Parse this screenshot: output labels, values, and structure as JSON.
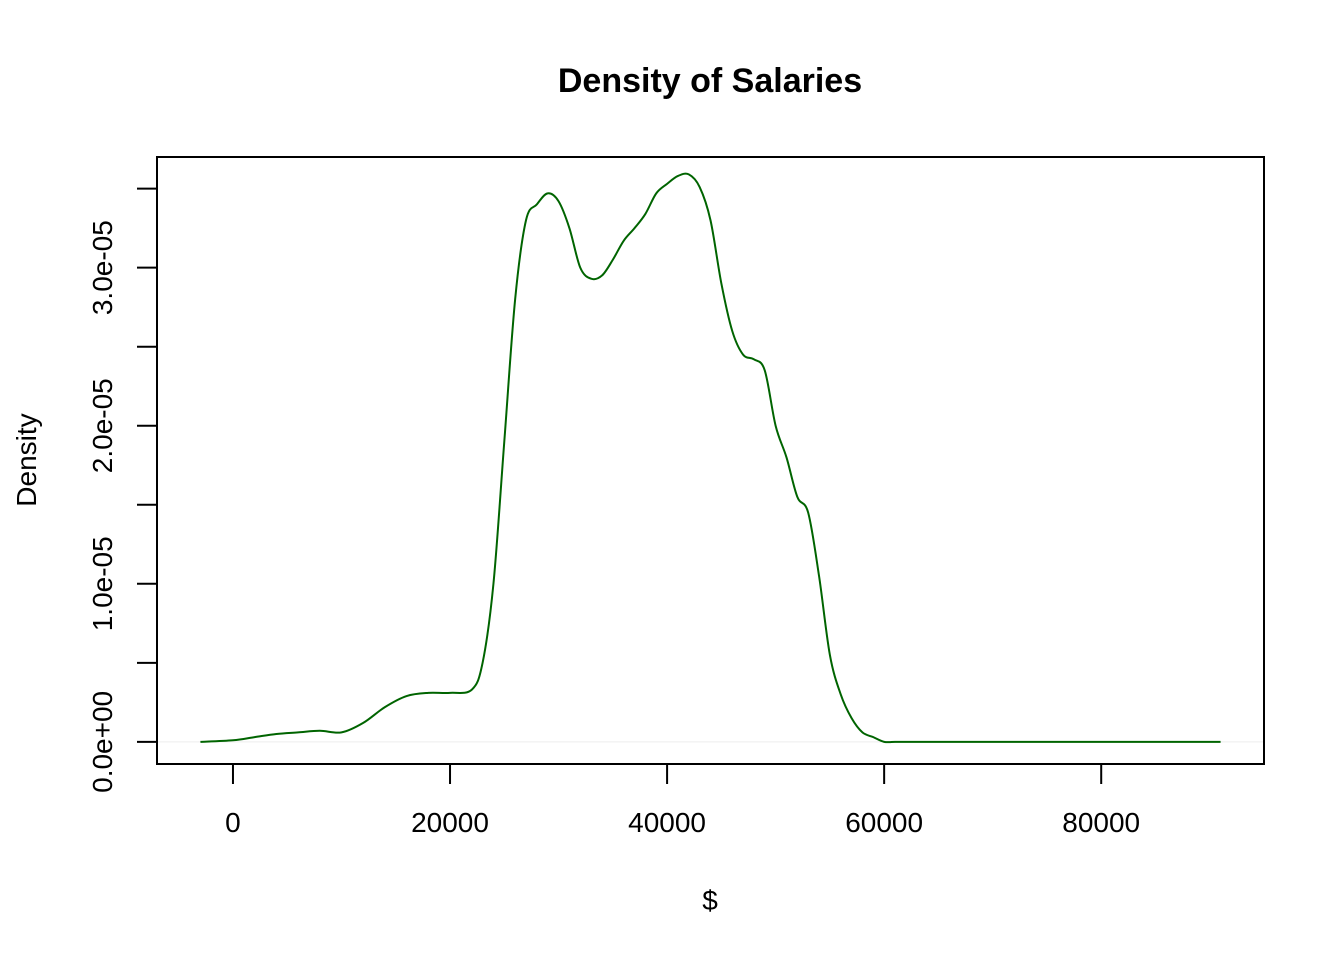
{
  "chart_data": {
    "type": "line",
    "title": "Density of Salaries",
    "xlabel": "$",
    "ylabel": "Density",
    "xlim": [
      -7000,
      95000
    ],
    "ylim": [
      -1.4e-06,
      3.7e-05
    ],
    "x_ticks": [
      0,
      20000,
      40000,
      60000,
      80000
    ],
    "x_tick_labels": [
      "0",
      "20000",
      "40000",
      "60000",
      "80000"
    ],
    "y_ticks": [
      0,
      5e-06,
      1e-05,
      1.5e-05,
      2e-05,
      2.5e-05,
      3e-05,
      3.5e-05
    ],
    "y_tick_labels": [
      "0.0e+00",
      "",
      "1.0e-05",
      "",
      "2.0e-05",
      "",
      "3.0e-05",
      ""
    ],
    "grid": false,
    "legend": "none",
    "colors": {
      "line": "#006400",
      "baseline": "#eeeeee",
      "axis": "#000000"
    },
    "series": [
      {
        "x": [
          -3000,
          0,
          2000,
          4000,
          6000,
          8000,
          10000,
          12000,
          14000,
          16000,
          18000,
          20000,
          22000,
          23000,
          24000,
          25000,
          26000,
          27000,
          28000,
          29000,
          30000,
          31000,
          32000,
          33000,
          34000,
          35000,
          36000,
          37000,
          38000,
          39000,
          40000,
          41000,
          42000,
          43000,
          44000,
          45000,
          46000,
          47000,
          48000,
          49000,
          50000,
          51000,
          52000,
          53000,
          54000,
          55000,
          56000,
          57000,
          58000,
          59000,
          60000,
          61000,
          62000,
          63000,
          64000,
          66000,
          68000,
          70000,
          75000,
          80000,
          85000,
          91000
        ],
        "values": [
          0.0,
          1e-07,
          3e-07,
          5e-07,
          6e-07,
          7e-07,
          6e-07,
          1.2e-06,
          2.2e-06,
          2.9e-06,
          3.1e-06,
          3.1e-06,
          3.3e-06,
          5e-06,
          1e-05,
          1.9e-05,
          2.8e-05,
          3.3e-05,
          3.4e-05,
          3.47e-05,
          3.42e-05,
          3.25e-05,
          3e-05,
          2.93e-05,
          2.95e-05,
          3.05e-05,
          3.17e-05,
          3.25e-05,
          3.34e-05,
          3.47e-05,
          3.53e-05,
          3.58e-05,
          3.59e-05,
          3.51e-05,
          3.3e-05,
          2.9e-05,
          2.6e-05,
          2.45e-05,
          2.42e-05,
          2.35e-05,
          2e-05,
          1.8e-05,
          1.55e-05,
          1.45e-05,
          1.05e-05,
          5.5e-06,
          3e-06,
          1.5e-06,
          6e-07,
          3e-07,
          0.0,
          0.0,
          0.0,
          0.0,
          0.0,
          0.0,
          0.0,
          0.0,
          0.0,
          0.0,
          0.0,
          0.0
        ]
      }
    ]
  }
}
